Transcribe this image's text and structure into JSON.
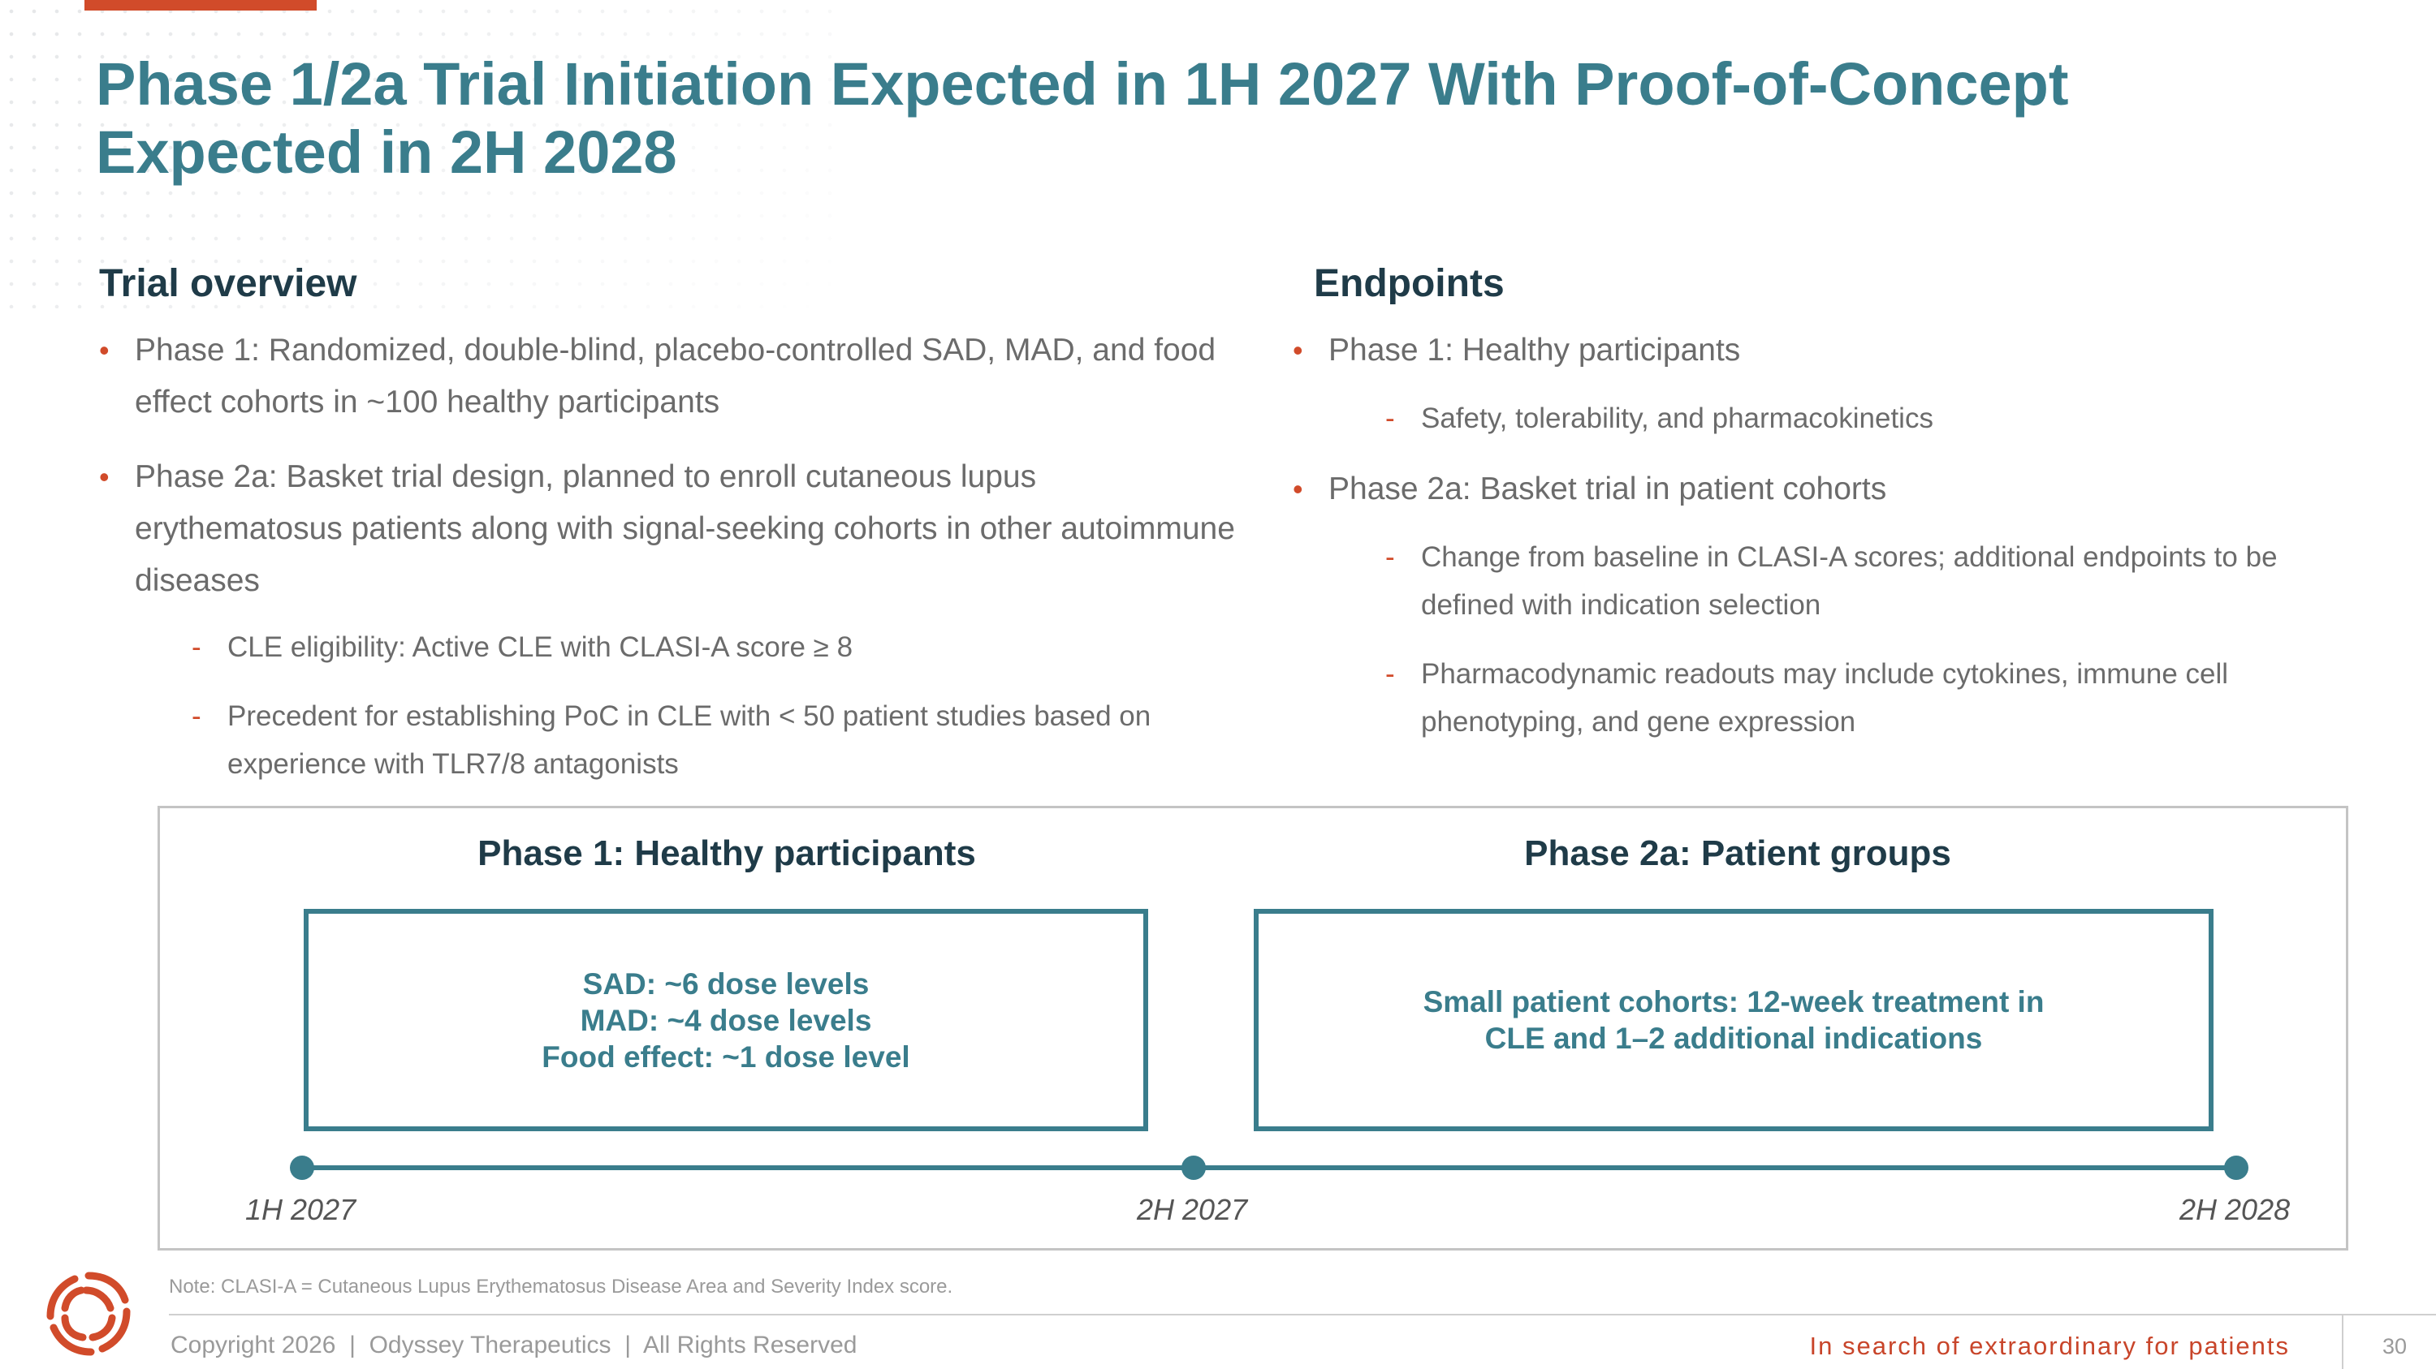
{
  "title": {
    "line1": "Phase 1/2a Trial Initiation Expected in 1H 2027 With Proof-of-Concept",
    "line2": "Expected in 2H 2028"
  },
  "trial_overview": {
    "heading": "Trial overview",
    "bullets": [
      "Phase 1: Randomized, double-blind, placebo-controlled SAD, MAD, and food effect cohorts in ~100 healthy participants",
      "Phase 2a: Basket trial design, planned to enroll cutaneous lupus erythematosus patients along with signal-seeking cohorts in other autoimmune diseases"
    ],
    "sub_bullets": [
      "CLE eligibility: Active CLE with CLASI-A score ≥ 8",
      "Precedent for establishing PoC in CLE with < 50 patient studies based on experience with TLR7/8 antagonists"
    ]
  },
  "endpoints": {
    "heading": "Endpoints",
    "phase1": {
      "bullet": "Phase 1: Healthy participants",
      "subs": [
        "Safety, tolerability, and pharmacokinetics"
      ]
    },
    "phase2a": {
      "bullet": "Phase 2a: Basket trial in patient cohorts",
      "subs": [
        "Change from baseline in CLASI-A scores; additional endpoints to be defined with indication selection",
        "Pharmacodynamic readouts may include cytokines, immune cell phenotyping, and gene expression"
      ]
    }
  },
  "timeline": {
    "phase1": {
      "heading": "Phase 1: Healthy participants",
      "lines": [
        "SAD: ~6 dose levels",
        "MAD: ~4 dose levels",
        "Food effect: ~1 dose level"
      ]
    },
    "phase2a": {
      "heading": "Phase 2a: Patient groups",
      "lines": [
        "Small patient cohorts: 12-week treatment in",
        "CLE and 1–2 additional indications"
      ]
    },
    "milestones": [
      "1H 2027",
      "2H 2027",
      "2H 2028"
    ],
    "accent_color": "#3a7d8c"
  },
  "footer": {
    "note": "Note: CLASI-A = Cutaneous Lupus Erythematosus Disease Area and Severity Index score.",
    "copyright": "Copyright 2026  |  Odyssey Therapeutics  |  All Rights Reserved",
    "tagline": "In search of extraordinary for patients",
    "page_number": "30",
    "logo_icon": "odyssey-swirl-logo",
    "brand_color": "#d14b2a"
  }
}
